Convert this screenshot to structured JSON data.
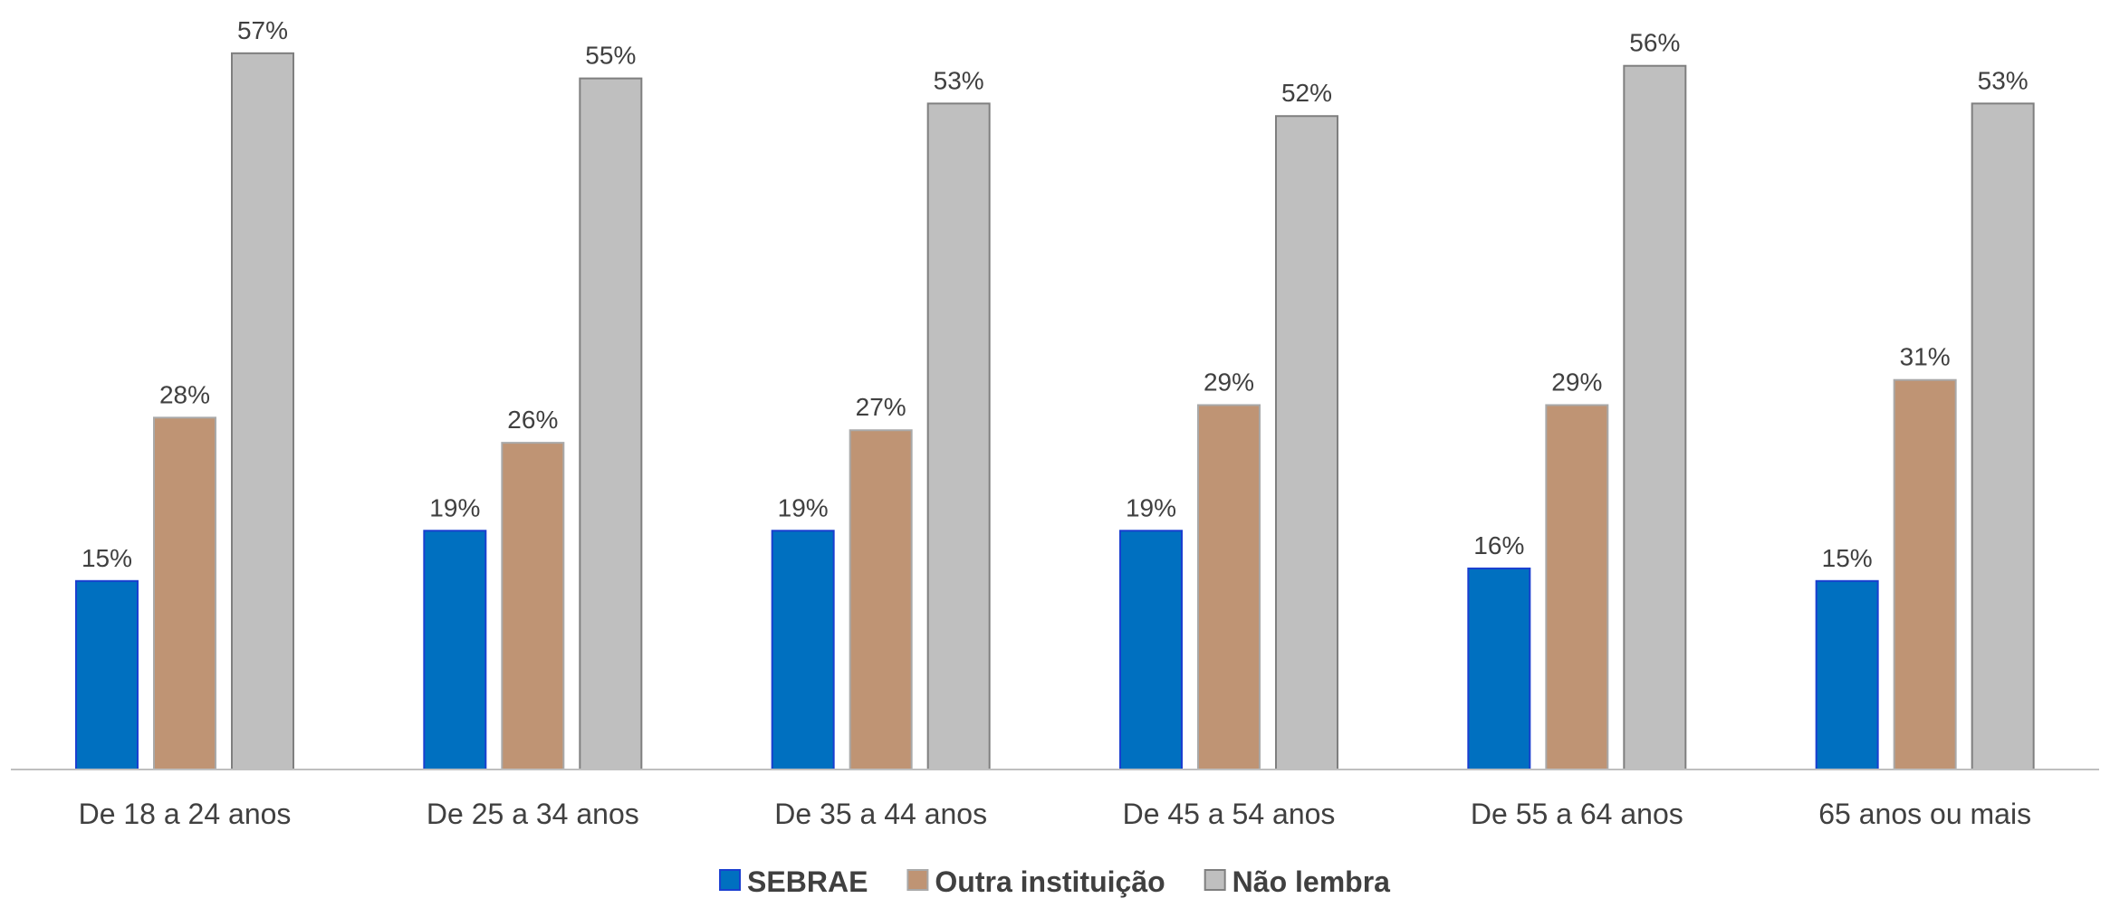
{
  "chart_data": {
    "type": "bar",
    "categories": [
      "De 18 a 24 anos",
      "De 25 a 34 anos",
      "De 35 a 44 anos",
      "De 45 a 54 anos",
      "De 55 a 64 anos",
      "65 anos ou mais"
    ],
    "series": [
      {
        "name": "SEBRAE",
        "color": "#0070C0",
        "values": [
          15,
          19,
          19,
          19,
          16,
          15
        ]
      },
      {
        "name": "Outra instituição",
        "color": "#BF9474",
        "values": [
          28,
          26,
          27,
          29,
          29,
          31
        ]
      },
      {
        "name": "Não lembra",
        "color": "#BFBFBF",
        "values": [
          57,
          55,
          53,
          52,
          56,
          53
        ]
      }
    ],
    "value_format": "percent",
    "ylim": [
      0,
      60
    ],
    "grid": false,
    "legend_position": "bottom",
    "title": "",
    "xlabel": "",
    "ylabel": ""
  }
}
